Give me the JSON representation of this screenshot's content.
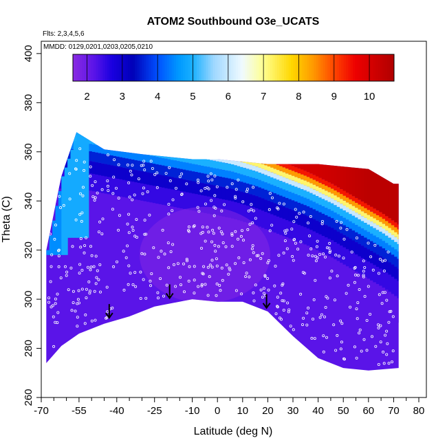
{
  "chart_data": {
    "type": "heatmap",
    "title": "ATOM2 Southbound O3e_UCATS",
    "notes": [
      "Flts: 2,3,4,5,6",
      "MMDD: 0129,0201,0203,0205,0210"
    ],
    "xlabel": "Latitude (deg N)",
    "ylabel": "Theta (C)",
    "xlim": [
      -70,
      83
    ],
    "ylim": [
      260,
      405
    ],
    "x_ticks": [
      -70,
      -55,
      -40,
      -25,
      -10,
      0,
      10,
      20,
      30,
      40,
      50,
      60,
      70,
      80
    ],
    "x_tick_labels": [
      "-70",
      "-55",
      "-40",
      "-25",
      "-10",
      "0",
      "10",
      "20",
      "30",
      "40",
      "50",
      "60",
      "70",
      "80"
    ],
    "x_minor_ticks": [
      -65,
      -60,
      -50,
      -45,
      -35,
      -30,
      -20,
      -15,
      -5,
      5,
      15,
      25,
      35,
      45,
      55,
      65,
      75
    ],
    "y_ticks": [
      260,
      280,
      300,
      320,
      340,
      360,
      380,
      400
    ],
    "y_tick_labels": [
      "260",
      "280",
      "300",
      "320",
      "340",
      "360",
      "380",
      "400"
    ],
    "colorbar": {
      "range": [
        1.6,
        10.7
      ],
      "ticks": [
        2,
        3,
        4,
        5,
        6,
        7,
        8,
        9,
        10
      ],
      "tick_labels": [
        "2",
        "3",
        "4",
        "5",
        "6",
        "7",
        "8",
        "9",
        "10"
      ],
      "stops": [
        {
          "v": 1.6,
          "color": "#8a2be2"
        },
        {
          "v": 2.2,
          "color": "#5a14e8"
        },
        {
          "v": 2.7,
          "color": "#1a00e0"
        },
        {
          "v": 3.3,
          "color": "#0000b8"
        },
        {
          "v": 4.0,
          "color": "#0050ff"
        },
        {
          "v": 4.6,
          "color": "#0099ff"
        },
        {
          "v": 5.0,
          "color": "#1ab0ff"
        },
        {
          "v": 5.6,
          "color": "#a0d8ff"
        },
        {
          "v": 6.4,
          "color": "#f0faff"
        },
        {
          "v": 7.0,
          "color": "#ffff90"
        },
        {
          "v": 7.8,
          "color": "#ffd700"
        },
        {
          "v": 8.4,
          "color": "#ff9a00"
        },
        {
          "v": 9.0,
          "color": "#ff4500"
        },
        {
          "v": 9.6,
          "color": "#ee0000"
        },
        {
          "v": 10.7,
          "color": "#b00000"
        }
      ]
    },
    "domain_top": [
      [
        -68,
        320
      ],
      [
        -62,
        350
      ],
      [
        -56,
        368
      ],
      [
        -45,
        361
      ],
      [
        -30,
        359
      ],
      [
        -20,
        358
      ],
      [
        -10,
        357
      ],
      [
        0,
        357
      ],
      [
        10,
        356
      ],
      [
        20,
        355
      ],
      [
        30,
        355
      ],
      [
        40,
        355
      ],
      [
        50,
        354
      ],
      [
        60,
        353
      ],
      [
        70,
        347
      ]
    ],
    "domain_bottom": [
      [
        -68,
        274
      ],
      [
        -62,
        281
      ],
      [
        -55,
        286
      ],
      [
        -45,
        290
      ],
      [
        -35,
        293
      ],
      [
        -25,
        297
      ],
      [
        -10,
        300
      ],
      [
        0,
        299
      ],
      [
        10,
        299
      ],
      [
        20,
        295
      ],
      [
        30,
        285
      ],
      [
        40,
        276
      ],
      [
        50,
        272
      ],
      [
        60,
        271
      ],
      [
        72,
        272
      ]
    ],
    "upper_gradient_band": {
      "center": [
        [
          -55,
          365
        ],
        [
          -40,
          362
        ],
        [
          -25,
          359
        ],
        [
          -15,
          357
        ],
        [
          -5,
          355
        ],
        [
          5,
          353
        ],
        [
          15,
          350
        ],
        [
          25,
          346
        ],
        [
          35,
          342
        ],
        [
          45,
          337
        ],
        [
          55,
          331
        ],
        [
          65,
          325
        ],
        [
          72,
          320
        ]
      ],
      "max_value": [
        [
          -55,
          5
        ],
        [
          -40,
          5.5
        ],
        [
          -25,
          6.5
        ],
        [
          -15,
          7.5
        ],
        [
          0,
          8.5
        ],
        [
          15,
          9.5
        ],
        [
          30,
          10
        ],
        [
          45,
          10.2
        ],
        [
          60,
          10.5
        ],
        [
          70,
          10.5
        ]
      ]
    },
    "arrows": [
      {
        "lat": -43,
        "theta": 293
      },
      {
        "lat": -19,
        "theta": 301
      },
      {
        "lat": 19.5,
        "theta": 297
      }
    ]
  }
}
